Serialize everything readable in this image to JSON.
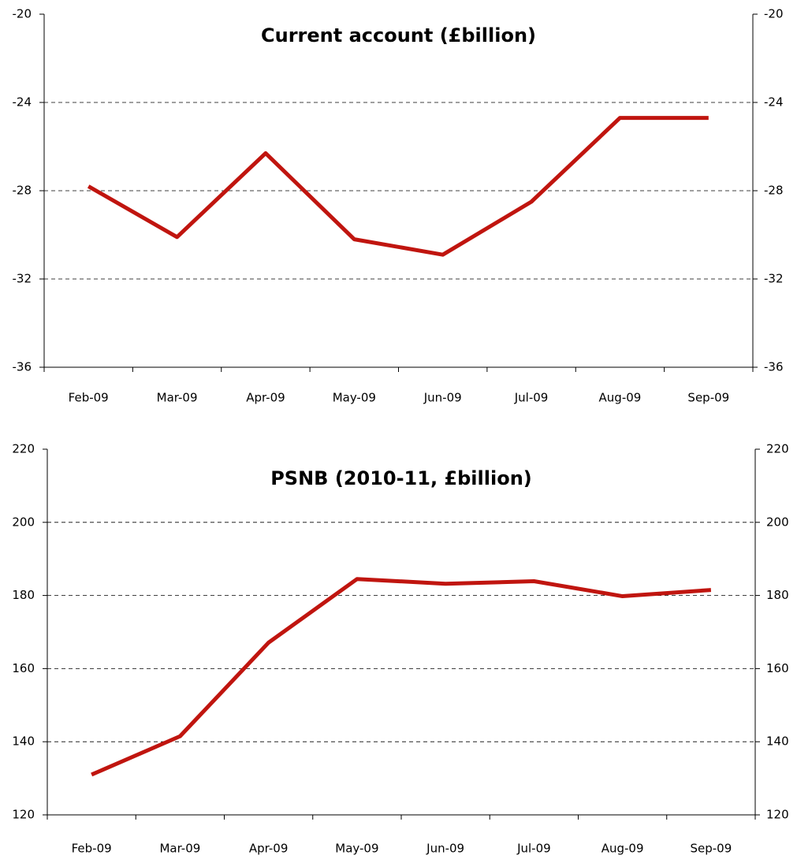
{
  "chart_data": [
    {
      "type": "line",
      "title": "Current account (£billion)",
      "categories": [
        "Feb-09",
        "Mar-09",
        "Apr-09",
        "May-09",
        "Jun-09",
        "Jul-09",
        "Aug-09",
        "Sep-09"
      ],
      "values": [
        -27.8,
        -30.1,
        -26.3,
        -30.2,
        -30.9,
        -28.5,
        -24.7,
        -24.7
      ],
      "color": "#c0150f",
      "ylim": [
        -36,
        -20
      ],
      "yticks": [
        -36,
        -32,
        -28,
        -24,
        -20
      ],
      "grid": true
    },
    {
      "type": "line",
      "title": "PSNB (2010-11, £billion)",
      "categories": [
        "Feb-09",
        "Mar-09",
        "Apr-09",
        "May-09",
        "Jun-09",
        "Jul-09",
        "Aug-09",
        "Sep-09"
      ],
      "values": [
        131,
        141.5,
        167.1,
        184.5,
        183.2,
        183.9,
        179.8,
        181.5
      ],
      "color": "#c0150f",
      "ylim": [
        120,
        220
      ],
      "yticks": [
        120,
        140,
        160,
        180,
        200,
        220
      ],
      "grid": true
    }
  ]
}
